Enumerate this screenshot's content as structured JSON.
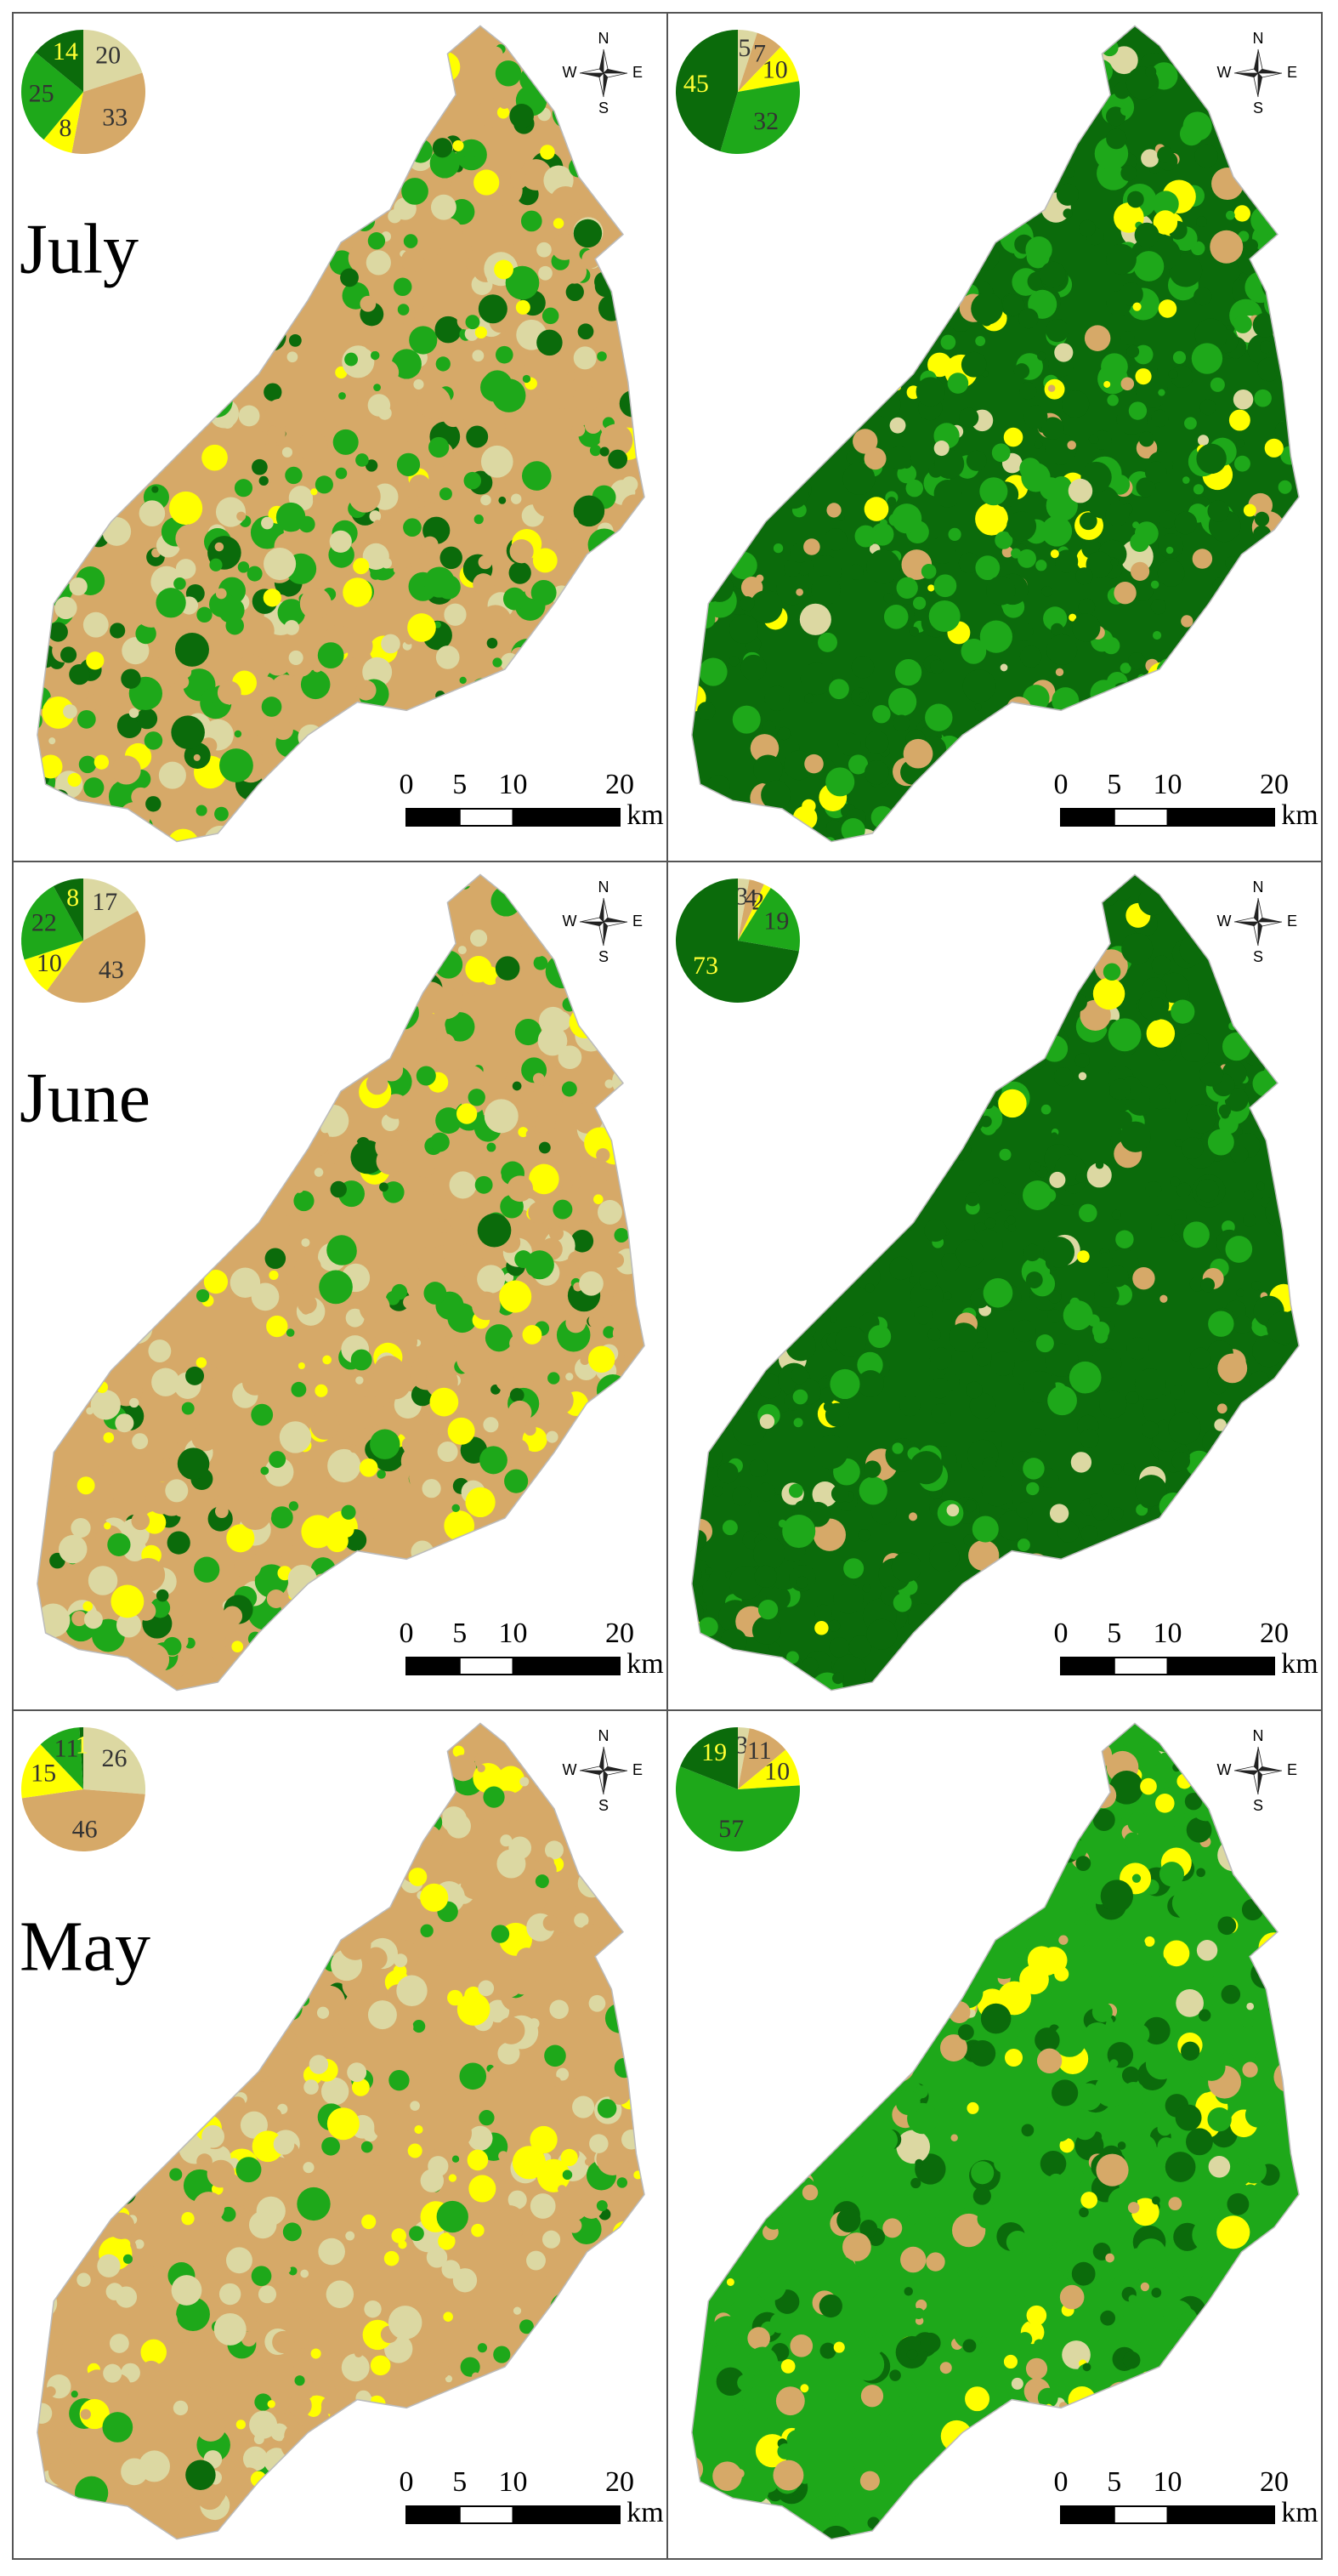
{
  "classes": {
    "colors": [
      "#dcd8a2",
      "#d6a968",
      "#ffff00",
      "#1ea81a",
      "#0b6b0b"
    ],
    "label_colors": [
      "#333333",
      "#333333",
      "#333333",
      "#333333",
      "#ffff33"
    ]
  },
  "compass": {
    "north": "N",
    "south": "S",
    "west": "W",
    "east": "E"
  },
  "scale_bar": {
    "ticks": [
      0,
      5,
      10,
      20
    ],
    "unit": "km"
  },
  "panels": [
    {
      "label": "July",
      "chart_data": {
        "type": "pie",
        "values": [
          20,
          33,
          8,
          25,
          14
        ]
      }
    },
    {
      "chart_data": {
        "type": "pie",
        "values": [
          5,
          7,
          10,
          32,
          45
        ]
      }
    },
    {
      "label": "June",
      "chart_data": {
        "type": "pie",
        "values": [
          17,
          43,
          10,
          22,
          8
        ]
      }
    },
    {
      "chart_data": {
        "type": "pie",
        "values": [
          3,
          4,
          2,
          19,
          73
        ]
      }
    },
    {
      "label": "May",
      "chart_data": {
        "type": "pie",
        "values": [
          26,
          46,
          15,
          11,
          1
        ]
      }
    },
    {
      "chart_data": {
        "type": "pie",
        "values": [
          3,
          11,
          10,
          57,
          19
        ]
      }
    }
  ]
}
